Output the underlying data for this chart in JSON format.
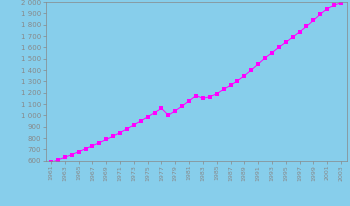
{
  "years": [
    1961,
    1962,
    1963,
    1964,
    1965,
    1966,
    1967,
    1968,
    1969,
    1970,
    1971,
    1972,
    1973,
    1974,
    1975,
    1976,
    1977,
    1978,
    1979,
    1980,
    1981,
    1982,
    1983,
    1984,
    1985,
    1986,
    1987,
    1988,
    1989,
    1990,
    1991,
    1992,
    1993,
    1994,
    1995,
    1996,
    1997,
    1998,
    1999,
    2000,
    2001,
    2002,
    2003
  ],
  "population": [
    584,
    607,
    630,
    654,
    679,
    705,
    732,
    759,
    787,
    817,
    848,
    881,
    916,
    951,
    987,
    1024,
    1062,
    1001,
    1041,
    1083,
    1128,
    1175,
    1150,
    1165,
    1190,
    1230,
    1265,
    1305,
    1350,
    1400,
    1453,
    1507,
    1553,
    1601,
    1645,
    1690,
    1737,
    1785,
    1838,
    1893,
    1942,
    1972,
    1994
  ],
  "background_color": "#87CEEB",
  "line_color": "#FF00FF",
  "marker_color": "#FF00FF",
  "ylim": [
    600,
    2000
  ],
  "yticks": [
    600,
    700,
    800,
    900,
    1000,
    1100,
    1200,
    1300,
    1400,
    1500,
    1600,
    1700,
    1800,
    1900,
    2000
  ],
  "tick_label_color": "#888888",
  "spine_color": "#888888"
}
